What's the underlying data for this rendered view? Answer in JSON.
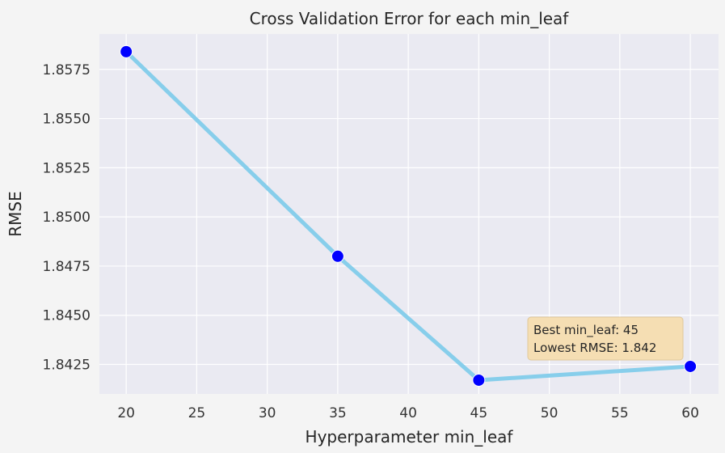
{
  "chart_data": {
    "type": "line",
    "title": "Cross Validation Error for each min_leaf",
    "xlabel": "Hyperparameter min_leaf",
    "ylabel": "RMSE",
    "x": [
      20,
      35,
      45,
      60
    ],
    "series": [
      {
        "values": [
          1.8584,
          1.848,
          1.8417,
          1.8424
        ]
      }
    ],
    "xlim": [
      18.1,
      62.0
    ],
    "ylim": [
      1.841,
      1.8593
    ],
    "xticks": [
      "20",
      "25",
      "30",
      "35",
      "40",
      "45",
      "50",
      "55",
      "60"
    ],
    "yticks": [
      "1.8425",
      "1.8450",
      "1.8475",
      "1.8500",
      "1.8525",
      "1.8550",
      "1.8575"
    ],
    "grid": true,
    "colors": {
      "plot_background": "#eaeaf2",
      "grid": "#ffffff",
      "line": "#87ceeb",
      "marker": "#0000ff",
      "annotation_fill": "#f5deb3",
      "annotation_border": "#e0c89a"
    },
    "annotation": {
      "lines": [
        "Best min_leaf: 45",
        "Lowest RMSE: 1.842"
      ]
    }
  }
}
